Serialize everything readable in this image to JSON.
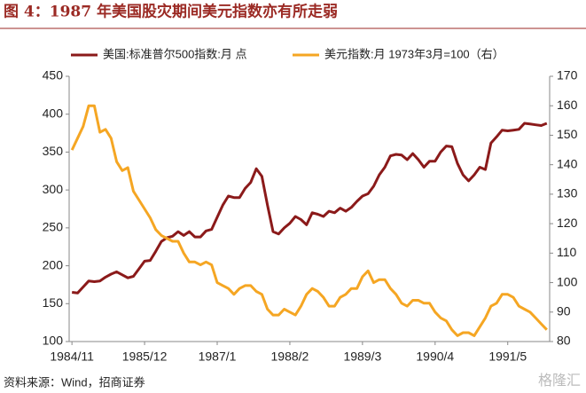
{
  "chart_data": {
    "type": "line",
    "title": "图 4：1987 年美国股灾期间美元指数亦有所走弱",
    "source": "资料来源：Wind，招商证券",
    "watermark": "格隆汇",
    "categories": [
      "1984/11",
      null,
      null,
      null,
      null,
      null,
      null,
      null,
      null,
      null,
      null,
      null,
      null,
      "1985/12",
      null,
      null,
      null,
      null,
      null,
      null,
      null,
      null,
      null,
      null,
      null,
      null,
      "1987/1",
      null,
      null,
      null,
      null,
      null,
      null,
      null,
      null,
      null,
      null,
      null,
      null,
      "1988/2",
      null,
      null,
      null,
      null,
      null,
      null,
      null,
      null,
      null,
      null,
      null,
      null,
      "1989/3",
      null,
      null,
      null,
      null,
      null,
      null,
      null,
      null,
      null,
      null,
      null,
      null,
      "1990/4",
      null,
      null,
      null,
      null,
      null,
      null,
      null,
      null,
      null,
      null,
      null,
      null,
      "1991/5",
      null,
      null,
      null,
      null,
      null,
      null,
      null
    ],
    "series": [
      {
        "name": "美国:标准普尔500指数:月 点",
        "color": "#8b1a1a",
        "axis": "y",
        "values": [
          165,
          164,
          172,
          180,
          179,
          180,
          185,
          189,
          192,
          188,
          184,
          186,
          196,
          206,
          207,
          219,
          232,
          237,
          239,
          245,
          240,
          245,
          238,
          238,
          246,
          248,
          264,
          280,
          292,
          290,
          290,
          302,
          310,
          328,
          318,
          280,
          245,
          242,
          250,
          256,
          265,
          261,
          254,
          270,
          268,
          265,
          272,
          270,
          276,
          272,
          277,
          285,
          292,
          295,
          305,
          320,
          330,
          345,
          347,
          346,
          340,
          348,
          340,
          330,
          338,
          338,
          350,
          358,
          357,
          335,
          320,
          312,
          320,
          330,
          327,
          362,
          370,
          379,
          378,
          379,
          380,
          388,
          387,
          386,
          385,
          388
        ]
      },
      {
        "name": "美元指数:月 1973年3月=100（右）",
        "color": "#f5a623",
        "axis": "y2",
        "values": [
          145,
          149,
          153,
          160,
          160,
          151,
          152,
          149,
          141,
          138,
          139,
          131,
          128,
          125,
          122,
          118,
          116,
          115,
          114,
          114,
          110,
          107,
          107,
          106,
          107,
          106,
          100,
          99,
          98,
          96,
          98,
          99,
          99,
          97,
          96,
          91,
          89,
          89,
          91,
          90,
          89,
          92,
          96,
          98,
          97,
          95,
          92,
          92,
          95,
          96,
          98,
          98,
          102,
          104,
          100,
          101,
          101,
          98,
          96,
          93,
          92,
          94,
          94,
          93,
          93,
          90,
          88,
          87,
          84,
          82,
          83,
          83,
          82,
          85,
          88,
          92,
          93,
          96,
          96,
          95,
          92,
          91,
          90,
          88,
          86,
          84
        ]
      }
    ],
    "ylim": [
      100,
      450
    ],
    "yticks": [
      100,
      150,
      200,
      250,
      300,
      350,
      400,
      450
    ],
    "y2lim": [
      80,
      170
    ],
    "y2ticks": [
      80,
      90,
      100,
      110,
      120,
      130,
      140,
      150,
      160,
      170
    ]
  }
}
